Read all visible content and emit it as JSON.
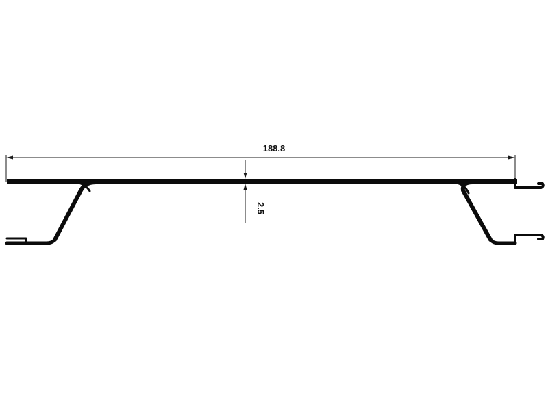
{
  "drawing": {
    "overall_width_label": "188.8",
    "wall_thickness_label": "2.5",
    "colors": {
      "profile": "#0b0b0b",
      "dimension": "#1a1a1a",
      "background": "#ffffff"
    }
  }
}
